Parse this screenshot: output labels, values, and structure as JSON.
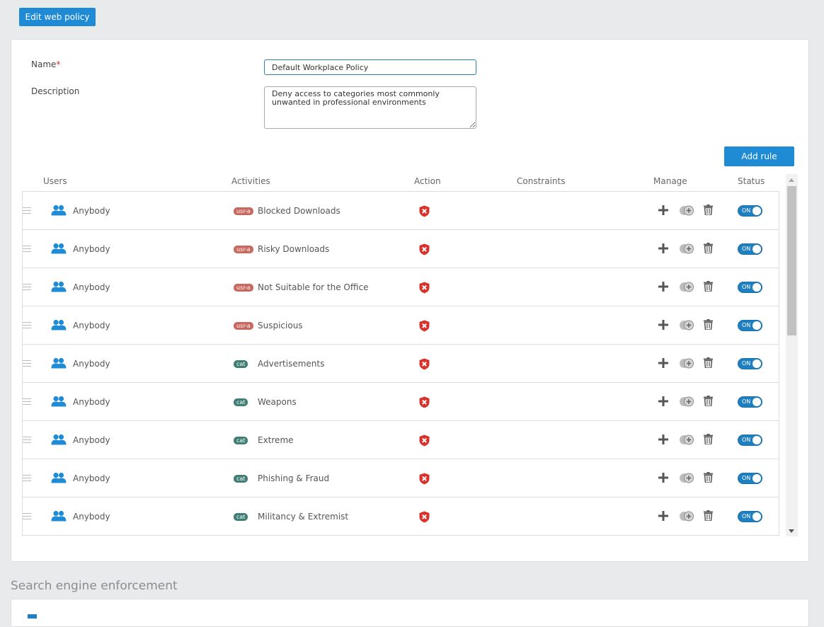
{
  "header": {
    "edit_button_label": "Edit web policy"
  },
  "form": {
    "name_label": "Name",
    "name_required_mark": "*",
    "name_value": "Default Workplace Policy",
    "description_label": "Description",
    "description_value": "Deny access to categories most commonly\nunwanted in professional environments"
  },
  "toolbar": {
    "add_rule_label": "Add rule"
  },
  "table": {
    "columns": {
      "users": "Users",
      "activities": "Activities",
      "action": "Action",
      "constraints": "Constraints",
      "manage": "Manage",
      "status": "Status"
    },
    "rows": [
      {
        "user": "Anybody",
        "badge": "usr-a",
        "activity": "Blocked Downloads",
        "status": "ON"
      },
      {
        "user": "Anybody",
        "badge": "usr-a",
        "activity": "Risky Downloads",
        "status": "ON"
      },
      {
        "user": "Anybody",
        "badge": "usr-a",
        "activity": "Not Suitable for the Office",
        "status": "ON"
      },
      {
        "user": "Anybody",
        "badge": "usr-a",
        "activity": "Suspicious",
        "status": "ON"
      },
      {
        "user": "Anybody",
        "badge": "cat",
        "activity": "Advertisements",
        "status": "ON"
      },
      {
        "user": "Anybody",
        "badge": "cat",
        "activity": "Weapons",
        "status": "ON"
      },
      {
        "user": "Anybody",
        "badge": "cat",
        "activity": "Extreme",
        "status": "ON"
      },
      {
        "user": "Anybody",
        "badge": "cat",
        "activity": "Phishing & Fraud",
        "status": "ON"
      },
      {
        "user": "Anybody",
        "badge": "cat",
        "activity": "Militancy & Extremist",
        "status": "ON"
      }
    ]
  },
  "icons": {
    "user": "users-group-icon",
    "action": "block-shield-icon",
    "add": "plus-icon",
    "clone": "clone-add-icon",
    "delete": "trash-icon",
    "drag": "drag-handle-icon"
  },
  "colors": {
    "primary": "#1f8bd4",
    "toggle_on": "#1f7fbf",
    "badge_usra": "#c8685f",
    "badge_cat": "#3f7d75",
    "block_red": "#d9322d"
  },
  "section": {
    "search_engine_title": "Search engine enforcement"
  }
}
